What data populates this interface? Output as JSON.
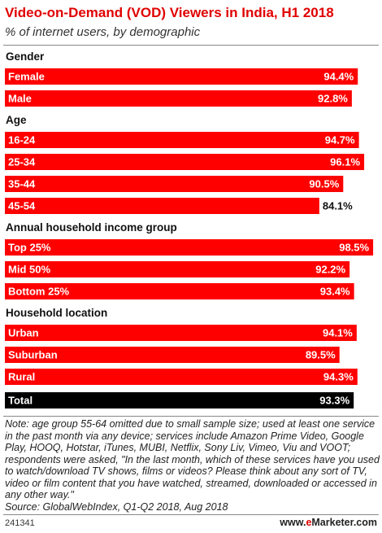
{
  "title": "Video-on-Demand (VOD) Viewers in India, H1 2018",
  "subtitle": "% of internet users, by demographic",
  "colors": {
    "bar": "#ff0000",
    "total_bar": "#000000",
    "title": "#e10000"
  },
  "chart_data": {
    "type": "bar",
    "orientation": "horizontal",
    "unit": "%",
    "xlim": [
      0,
      100
    ],
    "groups": [
      {
        "name": "Gender",
        "rows": [
          {
            "label": "Female",
            "value": 94.4,
            "display": "94.4%"
          },
          {
            "label": "Male",
            "value": 92.8,
            "display": "92.8%"
          }
        ]
      },
      {
        "name": "Age",
        "rows": [
          {
            "label": "16-24",
            "value": 94.7,
            "display": "94.7%"
          },
          {
            "label": "25-34",
            "value": 96.1,
            "display": "96.1%"
          },
          {
            "label": "35-44",
            "value": 90.5,
            "display": "90.5%"
          },
          {
            "label": "45-54",
            "value": 84.1,
            "display": "84.1%"
          }
        ]
      },
      {
        "name": "Annual household income group",
        "rows": [
          {
            "label": "Top 25%",
            "value": 98.5,
            "display": "98.5%"
          },
          {
            "label": "Mid 50%",
            "value": 92.2,
            "display": "92.2%"
          },
          {
            "label": "Bottom 25%",
            "value": 93.4,
            "display": "93.4%"
          }
        ]
      },
      {
        "name": "Household location",
        "rows": [
          {
            "label": "Urban",
            "value": 94.1,
            "display": "94.1%"
          },
          {
            "label": "Suburban",
            "value": 89.5,
            "display": "89.5%"
          },
          {
            "label": "Rural",
            "value": 94.3,
            "display": "94.3%"
          }
        ]
      },
      {
        "name": "",
        "rows": [
          {
            "label": "Total",
            "value": 93.3,
            "display": "93.3%",
            "total": true
          }
        ]
      }
    ]
  },
  "note": "Note: age group 55-64 omitted due to small sample size; used at least one service in the past month via any device; services include Amazon Prime Video, Google Play, HOOQ, Hotstar, iTunes, MUBI, Netflix, Sony Liv, Vimeo, Viu and VOOT; respondents were asked, \"In the last month, which of these services have you used to watch/download TV shows, films or videos? Please think about any sort of TV, video or film content that you have watched, streamed, downloaded or accessed in any other way.\"\nSource: GlobalWebIndex, Q1-Q2 2018, Aug 2018",
  "footer": {
    "chart_id": "241341",
    "brand_prefix": "www.",
    "brand_highlight": "e",
    "brand_suffix": "Marketer.com"
  }
}
